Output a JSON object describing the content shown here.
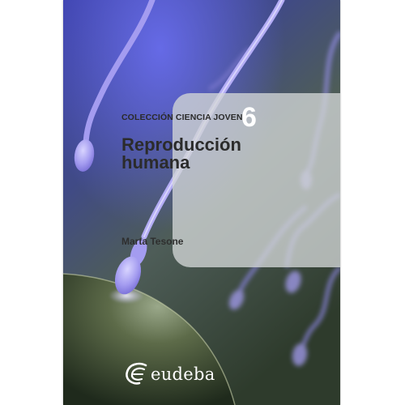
{
  "cover": {
    "collection": "COLECCIÓN CIENCIA JOVEN",
    "volume": "6",
    "title": "Reproducción humana",
    "author": "Marta Tesone",
    "publisher": "eudeba"
  },
  "images": {
    "background": "illustration-sperm-cells-approaching-egg",
    "publisher_logo": "eudeba-logo"
  },
  "colors": {
    "sperm": "#a49cf0",
    "panel": "#d2d6d6",
    "volume_number": "#ffffff",
    "publisher_text": "#ffffff"
  }
}
